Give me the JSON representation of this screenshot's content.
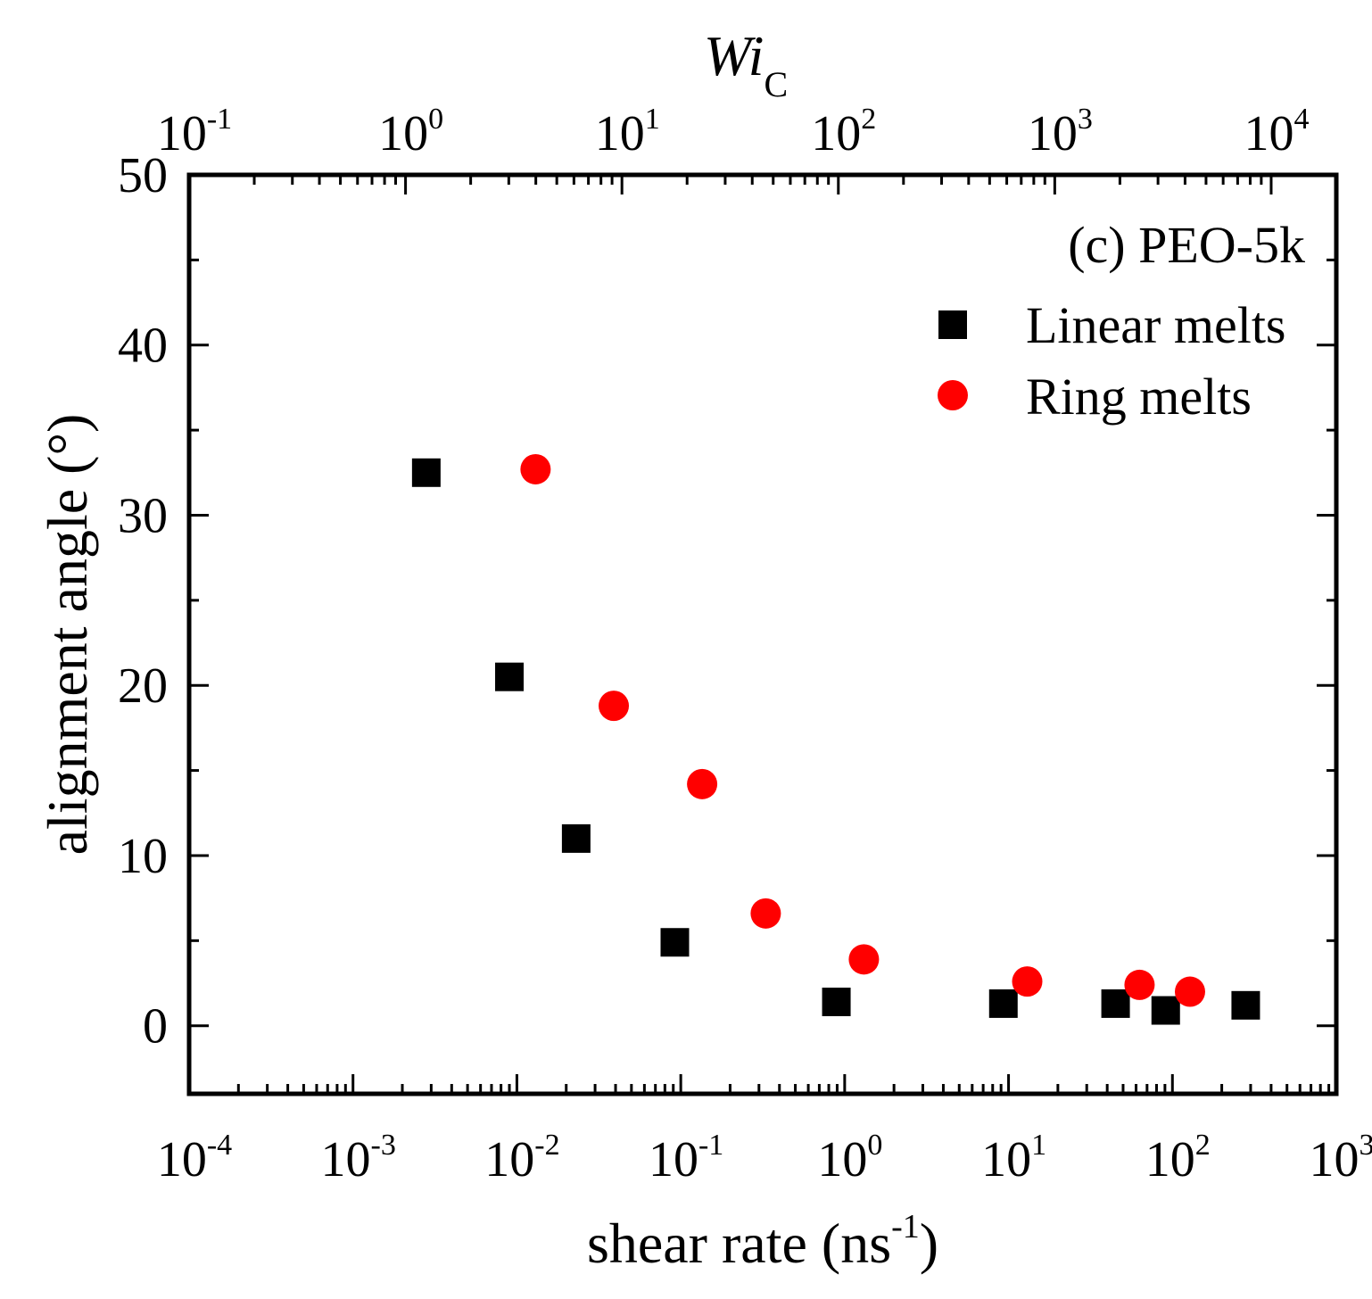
{
  "chart_data": {
    "type": "scatter",
    "annotation": "(c) PEO-5k",
    "xlabel": "shear rate (ns",
    "xlabel_sup": "-1",
    "xlabel_end": ")",
    "ylabel": "alignment angle (°)",
    "top_xlabel": "Wi",
    "top_xlabel_sub": "C",
    "xscale": "log",
    "xlim": [
      0.0001,
      1000
    ],
    "ylim": [
      -4,
      50
    ],
    "top_xlim": [
      0.1,
      20000
    ],
    "legend_position": "top-right",
    "colors": {
      "linear": "#000000",
      "ring": "#ff0000"
    },
    "x_ticks": [
      {
        "value": 0.0001,
        "base": "10",
        "exp": "-4"
      },
      {
        "value": 0.001,
        "base": "10",
        "exp": "-3"
      },
      {
        "value": 0.01,
        "base": "10",
        "exp": "-2"
      },
      {
        "value": 0.1,
        "base": "10",
        "exp": "-1"
      },
      {
        "value": 1,
        "base": "10",
        "exp": "0"
      },
      {
        "value": 10,
        "base": "10",
        "exp": "1"
      },
      {
        "value": 100,
        "base": "10",
        "exp": "2"
      },
      {
        "value": 1000,
        "base": "10",
        "exp": "3"
      }
    ],
    "top_x_ticks": [
      {
        "value": 0.1,
        "base": "10",
        "exp": "-1"
      },
      {
        "value": 1,
        "base": "10",
        "exp": "0"
      },
      {
        "value": 10,
        "base": "10",
        "exp": "1"
      },
      {
        "value": 100,
        "base": "10",
        "exp": "2"
      },
      {
        "value": 1000,
        "base": "10",
        "exp": "3"
      },
      {
        "value": 10000,
        "base": "10",
        "exp": "4"
      }
    ],
    "y_ticks": [
      0,
      10,
      20,
      30,
      40,
      50
    ],
    "series": [
      {
        "name": "Linear melts",
        "marker": "square",
        "x": [
          0.0028,
          0.009,
          0.023,
          0.092,
          0.89,
          9.3,
          45,
          91,
          280
        ],
        "y": [
          32.5,
          20.5,
          11,
          4.9,
          1.4,
          1.3,
          1.3,
          0.9,
          1.2
        ]
      },
      {
        "name": "Ring melts",
        "marker": "circle",
        "x": [
          0.013,
          0.039,
          0.135,
          0.33,
          1.31,
          13,
          63,
          128
        ],
        "y": [
          32.7,
          18.8,
          14.2,
          6.6,
          3.9,
          2.6,
          2.4,
          2.0
        ]
      }
    ]
  }
}
